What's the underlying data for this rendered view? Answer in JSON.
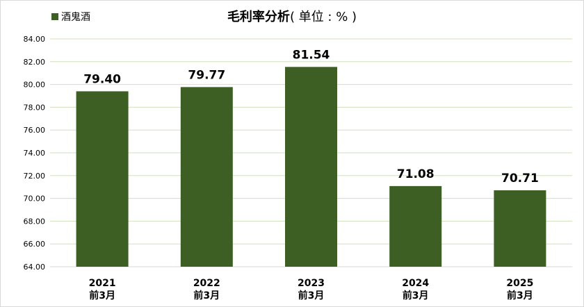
{
  "chart_data": {
    "type": "bar",
    "title_main": "毛利率分析",
    "title_unit": "( 单位 : % )",
    "series": [
      {
        "name": "酒鬼酒",
        "values": [
          79.4,
          79.77,
          81.54,
          71.08,
          70.71
        ]
      }
    ],
    "data_labels": [
      "79.40",
      "79.77",
      "81.54",
      "71.08",
      "70.71"
    ],
    "categories": [
      {
        "line1": "2021",
        "line2": "前3月"
      },
      {
        "line1": "2022",
        "line2": "前3月"
      },
      {
        "line1": "2023",
        "line2": "前3月"
      },
      {
        "line1": "2024",
        "line2": "前3月"
      },
      {
        "line1": "2025",
        "line2": "前3月"
      }
    ],
    "ylim": [
      64,
      84
    ],
    "yticks": [
      "64.00",
      "66.00",
      "68.00",
      "70.00",
      "72.00",
      "74.00",
      "76.00",
      "78.00",
      "80.00",
      "82.00",
      "84.00"
    ],
    "grid": true,
    "legend_position": "top-left",
    "bar_color": "#3d5f23",
    "grid_color": "#cfe0bd"
  }
}
